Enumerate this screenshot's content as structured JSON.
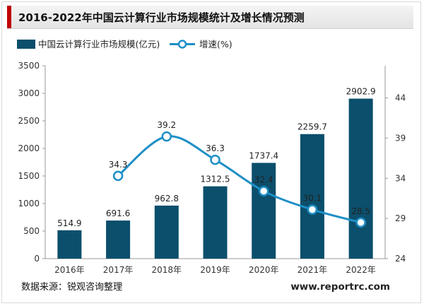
{
  "title": "2016-2022年中国云计算行业市场规模统计及增长情况预测",
  "chart_data": {
    "type": "bar+line",
    "categories": [
      "2016年",
      "2017年",
      "2018年",
      "2019年",
      "2020年",
      "2021年",
      "2022年"
    ],
    "series": [
      {
        "name": "中国云计算行业市场规模(亿元)",
        "type": "bar",
        "axis": "left",
        "values": [
          514.9,
          691.6,
          962.8,
          1312.5,
          1737.4,
          2259.7,
          2902.9
        ],
        "labels": [
          "514.9",
          "691.6",
          "962.8",
          "1312.5",
          "1737.4",
          "2259.7",
          "2902.9"
        ],
        "color": "#0b4f6c"
      },
      {
        "name": "增速(%)",
        "type": "line",
        "axis": "right",
        "values": [
          null,
          34.3,
          39.2,
          36.3,
          32.4,
          30.1,
          28.5
        ],
        "labels": [
          "",
          "34.3",
          "39.2",
          "36.3",
          "32.4",
          "30.1",
          "28.5"
        ],
        "color": "#1e8fc7"
      }
    ],
    "y_left": {
      "min": 0,
      "max": 3500,
      "ticks": [
        0,
        500,
        1000,
        1500,
        2000,
        2500,
        3000,
        3500
      ]
    },
    "y_right": {
      "min": 24,
      "max": 48,
      "ticks": [
        24,
        29,
        34,
        39,
        44
      ]
    },
    "grid": false,
    "legend": "top-left"
  },
  "footer": {
    "source": "数据来源：锐观咨询整理",
    "website": "www.reportrc.com"
  }
}
